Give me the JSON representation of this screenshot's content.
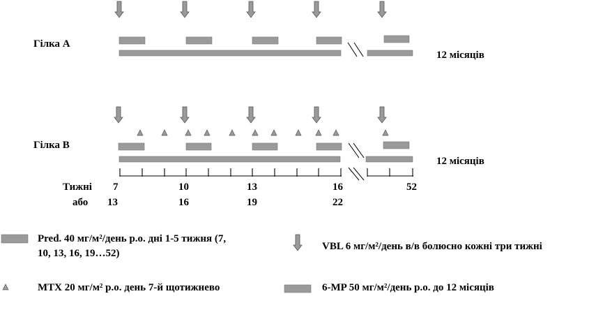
{
  "arm_a": {
    "label": "Гілка A",
    "duration": "12 місяців"
  },
  "arm_b": {
    "label": "Гілка B",
    "duration": "12 місяців"
  },
  "axis": {
    "row1_label": "Тижні",
    "row2_label": "або",
    "row1_ticks": [
      "7",
      "10",
      "13",
      "16",
      "52"
    ],
    "row2_ticks": [
      "13",
      "16",
      "19",
      "22"
    ]
  },
  "legend": {
    "pred": {
      "line1": "Pred. 40 мг/м²/день р.о. дні 1-5 тижня (7,",
      "line2": "10, 13, 16, 19…52)"
    },
    "vbl": {
      "text": "VBL 6 мг/м²/день в/в болюсно кожні три тижні"
    },
    "mtx": {
      "text": "MTX 20 мг/м² р.о. день 7-й щотижнево"
    },
    "mp": {
      "text": "6-MP 50 мг/м²/день р.о. до 12 місяців"
    }
  },
  "icons": {
    "vbl": "down-arrow-icon",
    "mtx": "triangle-icon",
    "pred": "short-bar-icon",
    "mp": "long-bar-icon"
  },
  "colors": {
    "bar": "#9a9a9a",
    "text": "#000000"
  }
}
